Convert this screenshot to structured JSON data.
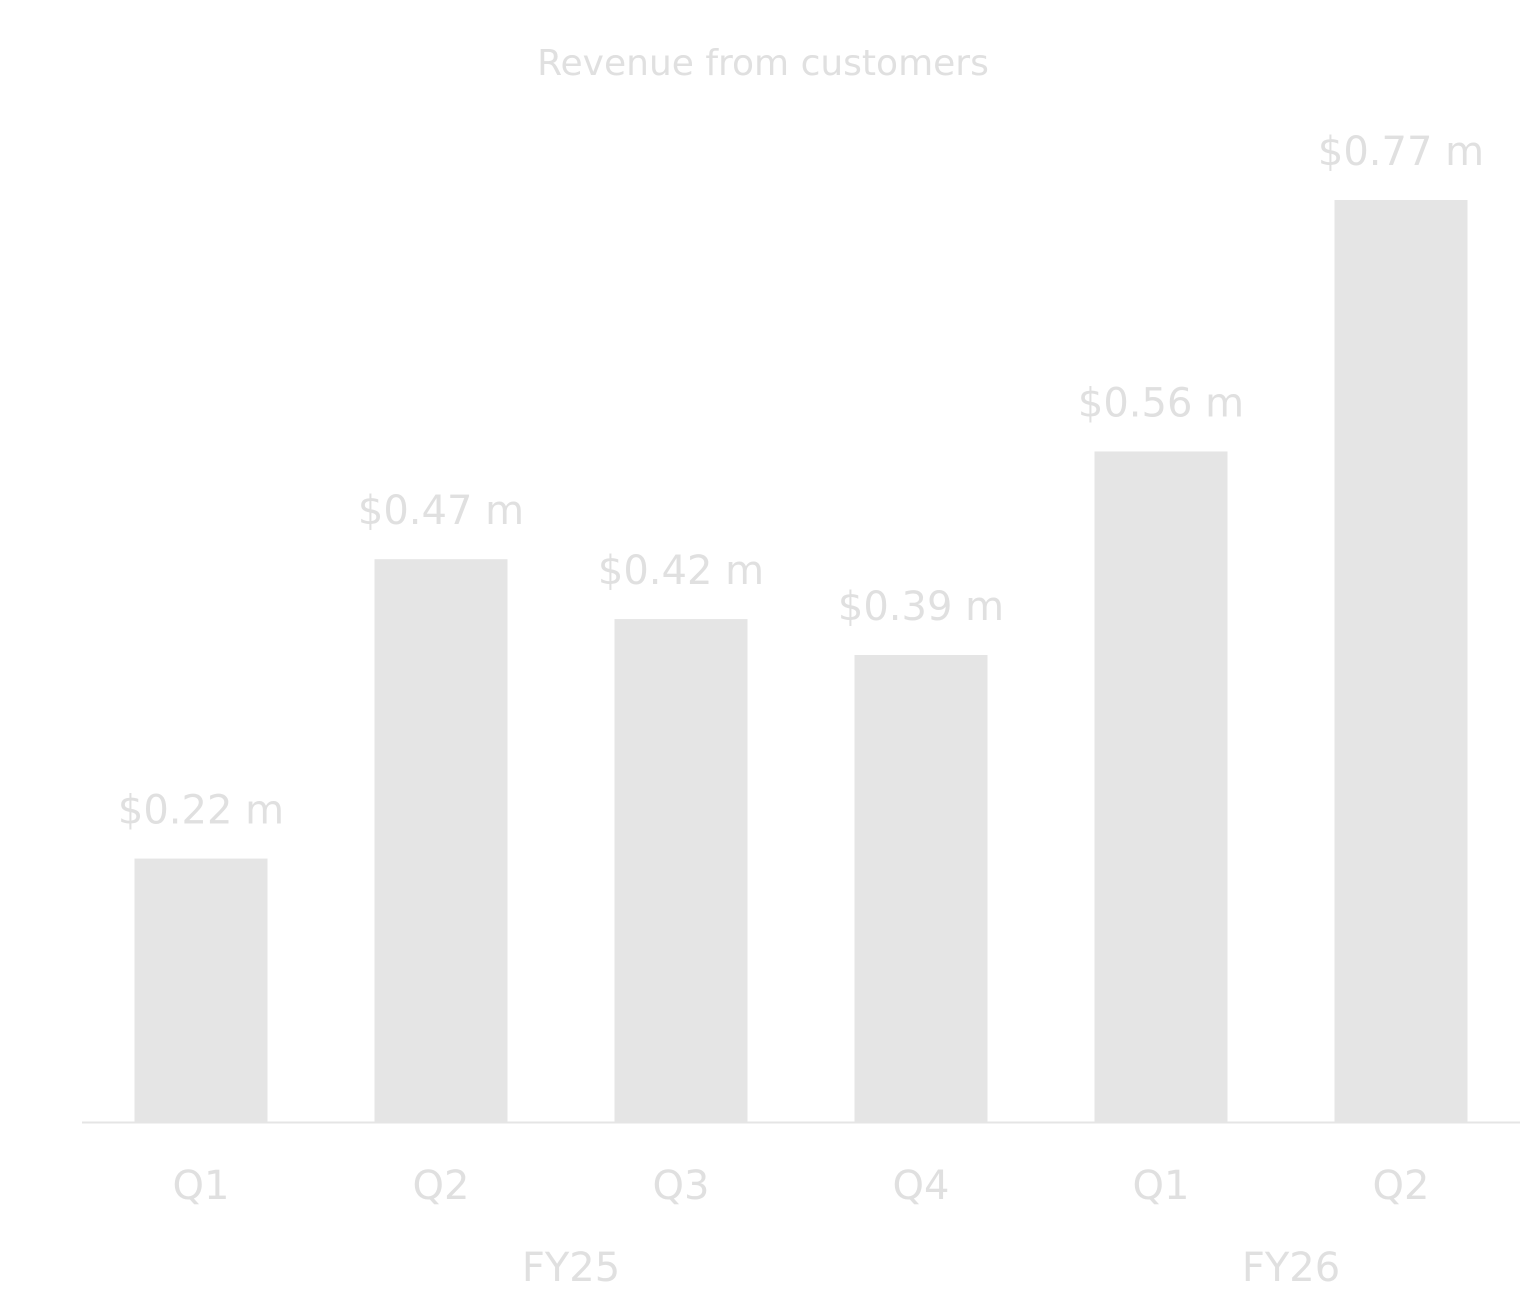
{
  "chart_data": {
    "type": "bar",
    "title": "Revenue from customers",
    "categories": [
      "Q1",
      "Q2",
      "Q3",
      "Q4",
      "Q1",
      "Q2"
    ],
    "values": [
      0.22,
      0.47,
      0.42,
      0.39,
      0.56,
      0.77
    ],
    "value_labels": [
      "$0.22 m",
      "$0.47 m",
      "$0.42 m",
      "$0.39 m",
      "$0.56 m",
      "$0.77 m"
    ],
    "groups": [
      {
        "name": "FY25",
        "count": 4
      },
      {
        "name": "FY26",
        "count": 2
      }
    ],
    "color": "#e5e5e5"
  }
}
